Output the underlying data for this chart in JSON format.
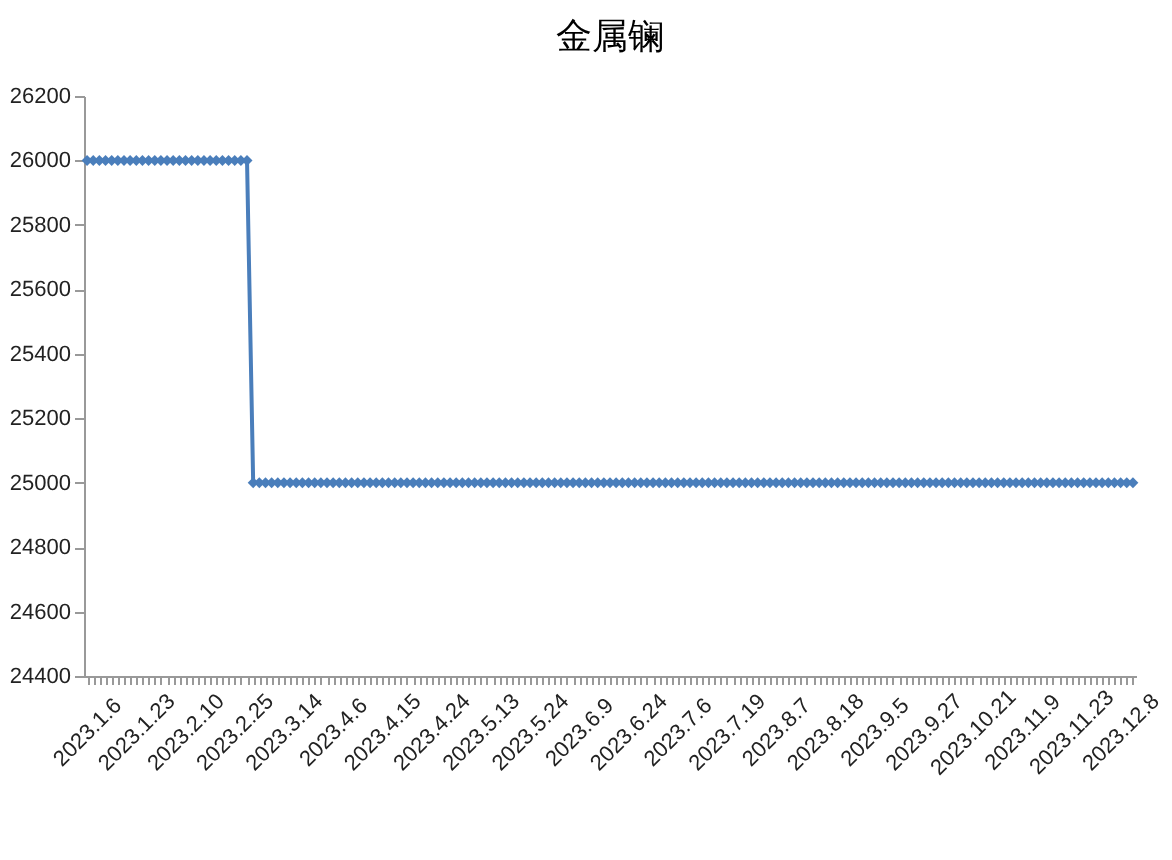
{
  "chart_data": {
    "type": "line",
    "title": "金属镧",
    "categories": [
      "2023.1.6",
      null,
      null,
      null,
      null,
      null,
      null,
      null,
      "2023.1.23",
      null,
      null,
      null,
      null,
      null,
      null,
      null,
      "2023.2.10",
      null,
      null,
      null,
      null,
      null,
      null,
      null,
      "2023.2.25",
      null,
      null,
      null,
      null,
      null,
      null,
      null,
      "2023.3.14",
      null,
      null,
      null,
      null,
      null,
      null,
      null,
      "2023.4.6",
      null,
      null,
      null,
      null,
      null,
      null,
      null,
      "2023.4.15",
      null,
      null,
      null,
      null,
      null,
      null,
      null,
      "2023.4.24",
      null,
      null,
      null,
      null,
      null,
      null,
      null,
      "2023.5.13",
      null,
      null,
      null,
      null,
      null,
      null,
      null,
      "2023.5.24",
      null,
      null,
      null,
      null,
      null,
      null,
      null,
      "2023.6.9",
      null,
      null,
      null,
      null,
      null,
      null,
      null,
      "2023.6.24",
      null,
      null,
      null,
      null,
      null,
      null,
      null,
      "2023.7.6",
      null,
      null,
      null,
      null,
      null,
      null,
      null,
      "2023.7.19",
      null,
      null,
      null,
      null,
      null,
      null,
      null,
      "2023.8.7",
      null,
      null,
      null,
      null,
      null,
      null,
      null,
      "2023.8.18",
      null,
      null,
      null,
      null,
      null,
      null,
      null,
      "2023.9.5",
      null,
      null,
      null,
      null,
      null,
      null,
      null,
      "2023.9.27",
      null,
      null,
      null,
      null,
      null,
      null,
      null,
      "2023.10.21",
      null,
      null,
      null,
      null,
      null,
      null,
      null,
      "2023.11.9",
      null,
      null,
      null,
      null,
      null,
      null,
      null,
      "2023.11.23",
      null,
      null,
      null,
      null,
      null,
      null,
      null,
      "2023.12.8",
      null,
      null
    ],
    "series": [
      {
        "color": "#4a7ebb",
        "values": [
          26000,
          26000,
          26000,
          26000,
          26000,
          26000,
          26000,
          26000,
          26000,
          26000,
          26000,
          26000,
          26000,
          26000,
          26000,
          26000,
          26000,
          26000,
          26000,
          26000,
          26000,
          26000,
          26000,
          26000,
          26000,
          26000,
          26000,
          25000,
          25000,
          25000,
          25000,
          25000,
          25000,
          25000,
          25000,
          25000,
          25000,
          25000,
          25000,
          25000,
          25000,
          25000,
          25000,
          25000,
          25000,
          25000,
          25000,
          25000,
          25000,
          25000,
          25000,
          25000,
          25000,
          25000,
          25000,
          25000,
          25000,
          25000,
          25000,
          25000,
          25000,
          25000,
          25000,
          25000,
          25000,
          25000,
          25000,
          25000,
          25000,
          25000,
          25000,
          25000,
          25000,
          25000,
          25000,
          25000,
          25000,
          25000,
          25000,
          25000,
          25000,
          25000,
          25000,
          25000,
          25000,
          25000,
          25000,
          25000,
          25000,
          25000,
          25000,
          25000,
          25000,
          25000,
          25000,
          25000,
          25000,
          25000,
          25000,
          25000,
          25000,
          25000,
          25000,
          25000,
          25000,
          25000,
          25000,
          25000,
          25000,
          25000,
          25000,
          25000,
          25000,
          25000,
          25000,
          25000,
          25000,
          25000,
          25000,
          25000,
          25000,
          25000,
          25000,
          25000,
          25000,
          25000,
          25000,
          25000,
          25000,
          25000,
          25000,
          25000,
          25000,
          25000,
          25000,
          25000,
          25000,
          25000,
          25000,
          25000,
          25000,
          25000,
          25000,
          25000,
          25000,
          25000,
          25000,
          25000,
          25000,
          25000,
          25000,
          25000,
          25000,
          25000,
          25000,
          25000,
          25000,
          25000,
          25000,
          25000,
          25000,
          25000,
          25000,
          25000,
          25000,
          25000,
          25000,
          25000,
          25000,
          25000,
          25000
        ]
      }
    ],
    "ylim": [
      24400,
      26200
    ],
    "yticks": [
      24400,
      24600,
      24800,
      25000,
      25200,
      25400,
      25600,
      25800,
      26000,
      26200
    ],
    "grid": false,
    "marker": "diamond",
    "line_style": "solid"
  }
}
